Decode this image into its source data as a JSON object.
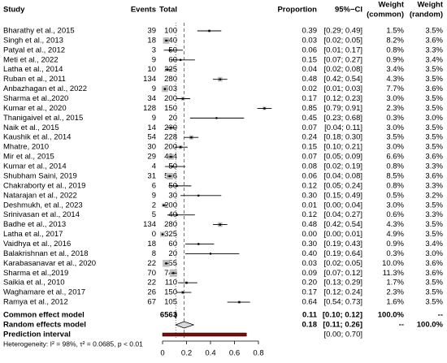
{
  "chart_data": {
    "type": "forest",
    "headers": {
      "study": "Study",
      "events": "Events",
      "total": "Total",
      "proportion": "Proportion",
      "ci": "95%−CI",
      "weight_common": [
        "Weight",
        "(common)"
      ],
      "weight_random": [
        "Weight",
        "(random)"
      ]
    },
    "categories": [
      "Bharathy et al., 2015",
      "Singh et al., 2013",
      "Patyal et al., 2012",
      "Meti et al., 2022",
      "Latha et al., 2014",
      "Ruban et al., 2011",
      "Anbazhagan et al., 2022",
      "Sharma et al.,2020",
      "Kumar et al., 2020",
      "Thanigaivel et al., 2015",
      "Naik et al., 2015",
      "Kaushik et al., 2014",
      "Mhatre, 2010",
      "Mir et al., 2015",
      "Kumar et al., 2014",
      "Shubham Saini, 2019",
      "Chakraborty et al., 2019",
      "Natarajan et al., 2022",
      "Deshmukh, et al., 2023",
      "Srinivasan et al., 2014",
      "Badhe et al., 2013",
      "Latha et al., 2017",
      "Vaidhya et al., 2016",
      "Balakrishnan et al., 2018",
      "Karabasanavar et al., 2020",
      "Sharma et al.,2019",
      "Saikia et al., 2010",
      "Waghamare et al., 2017",
      "Ramya et al., 2012"
    ],
    "events": [
      39,
      18,
      3,
      9,
      10,
      134,
      9,
      34,
      128,
      9,
      14,
      54,
      30,
      29,
      4,
      31,
      6,
      9,
      2,
      5,
      134,
      0,
      18,
      8,
      22,
      70,
      22,
      26,
      67
    ],
    "totals": [
      100,
      540,
      50,
      60,
      225,
      280,
      503,
      200,
      150,
      20,
      200,
      228,
      200,
      434,
      50,
      556,
      50,
      30,
      200,
      40,
      280,
      325,
      60,
      20,
      655,
      742,
      110,
      150,
      105
    ],
    "values": [
      0.39,
      0.03,
      0.06,
      0.15,
      0.04,
      0.48,
      0.02,
      0.17,
      0.85,
      0.45,
      0.07,
      0.24,
      0.15,
      0.07,
      0.08,
      0.06,
      0.12,
      0.3,
      0.01,
      0.12,
      0.48,
      0.0,
      0.3,
      0.4,
      0.03,
      0.09,
      0.2,
      0.17,
      0.64
    ],
    "value_labels": [
      "0.39",
      "0.03",
      "0.06",
      "0.15",
      "0.04",
      "0.48",
      "0.02",
      "0.17",
      "0.85",
      "0.45",
      "0.07",
      "0.24",
      "0.15",
      "0.07",
      "0.08",
      "0.06",
      "0.12",
      "0.30",
      "0.01",
      "0.12",
      "0.48",
      "0.00",
      "0.30",
      "0.40",
      "0.03",
      "0.09",
      "0.20",
      "0.17",
      "0.64"
    ],
    "lower": [
      0.29,
      0.02,
      0.01,
      0.07,
      0.02,
      0.42,
      0.01,
      0.12,
      0.79,
      0.23,
      0.04,
      0.18,
      0.1,
      0.05,
      0.02,
      0.04,
      0.05,
      0.15,
      0.0,
      0.04,
      0.42,
      0.0,
      0.19,
      0.19,
      0.02,
      0.07,
      0.13,
      0.12,
      0.54
    ],
    "upper": [
      0.49,
      0.05,
      0.17,
      0.27,
      0.08,
      0.54,
      0.03,
      0.23,
      0.91,
      0.68,
      0.11,
      0.3,
      0.21,
      0.09,
      0.19,
      0.08,
      0.24,
      0.49,
      0.04,
      0.27,
      0.54,
      0.01,
      0.43,
      0.64,
      0.05,
      0.12,
      0.29,
      0.24,
      0.73
    ],
    "ci_labels": [
      "[0.29; 0.49]",
      "[0.02; 0.05]",
      "[0.01; 0.17]",
      "[0.07; 0.27]",
      "[0.02; 0.08]",
      "[0.42; 0.54]",
      "[0.01; 0.03]",
      "[0.12; 0.23]",
      "[0.79; 0.91]",
      "[0.23; 0.68]",
      "[0.04; 0.11]",
      "[0.18; 0.30]",
      "[0.10; 0.21]",
      "[0.05; 0.09]",
      "[0.02; 0.19]",
      "[0.04; 0.08]",
      "[0.05; 0.24]",
      "[0.15; 0.49]",
      "[0.00; 0.04]",
      "[0.04; 0.27]",
      "[0.42; 0.54]",
      "[0.00; 0.01]",
      "[0.19; 0.43]",
      "[0.19; 0.64]",
      "[0.02; 0.05]",
      "[0.07; 0.12]",
      "[0.13; 0.29]",
      "[0.12; 0.24]",
      "[0.54; 0.73]"
    ],
    "weights_common": [
      1.5,
      8.2,
      0.8,
      0.9,
      3.4,
      4.3,
      7.7,
      3.0,
      2.3,
      0.3,
      3.0,
      3.5,
      3.0,
      6.6,
      0.8,
      8.5,
      0.8,
      0.5,
      3.0,
      0.6,
      4.3,
      4.9,
      0.9,
      0.3,
      10.0,
      11.3,
      1.7,
      2.3,
      1.6
    ],
    "weights_common_labels": [
      "1.5%",
      "8.2%",
      "0.8%",
      "0.9%",
      "3.4%",
      "4.3%",
      "7.7%",
      "3.0%",
      "2.3%",
      "0.3%",
      "3.0%",
      "3.5%",
      "3.0%",
      "6.6%",
      "0.8%",
      "8.5%",
      "0.8%",
      "0.5%",
      "3.0%",
      "0.6%",
      "4.3%",
      "4.9%",
      "0.9%",
      "0.3%",
      "10.0%",
      "11.3%",
      "1.7%",
      "2.3%",
      "1.6%"
    ],
    "weights_random_labels": [
      "3.5%",
      "3.6%",
      "3.3%",
      "3.4%",
      "3.5%",
      "3.5%",
      "3.6%",
      "3.5%",
      "3.5%",
      "3.0%",
      "3.5%",
      "3.5%",
      "3.5%",
      "3.6%",
      "3.3%",
      "3.6%",
      "3.3%",
      "3.2%",
      "3.5%",
      "3.3%",
      "3.5%",
      "3.5%",
      "3.4%",
      "3.0%",
      "3.6%",
      "3.6%",
      "3.5%",
      "3.5%",
      "3.5%"
    ],
    "common": {
      "label": "Common effect model",
      "total": 6563,
      "value": 0.11,
      "value_label": "0.11",
      "lower": 0.1,
      "upper": 0.12,
      "ci_label": "[0.10; 0.12]",
      "weight_common": "100.0%",
      "weight_random": "--"
    },
    "random": {
      "label": "Random effects model",
      "value": 0.18,
      "value_label": "0.18",
      "lower": 0.11,
      "upper": 0.26,
      "ci_label": "[0.11; 0.26]",
      "weight_common": "--",
      "weight_random": "100.0%"
    },
    "prediction": {
      "label": "Prediction interval",
      "lower": 0,
      "upper": 0.7,
      "ci_label": "[0.00; 0.70]",
      "color": "#7a0c0c"
    },
    "heterogeneity": "Heterogeneity: I² = 98%, τ² = 0.0685, p < 0.01",
    "xlim": [
      0,
      0.8
    ],
    "xticks": [
      0,
      0.2,
      0.4,
      0.6,
      0.8
    ],
    "square_color": "#bdbdbd"
  }
}
